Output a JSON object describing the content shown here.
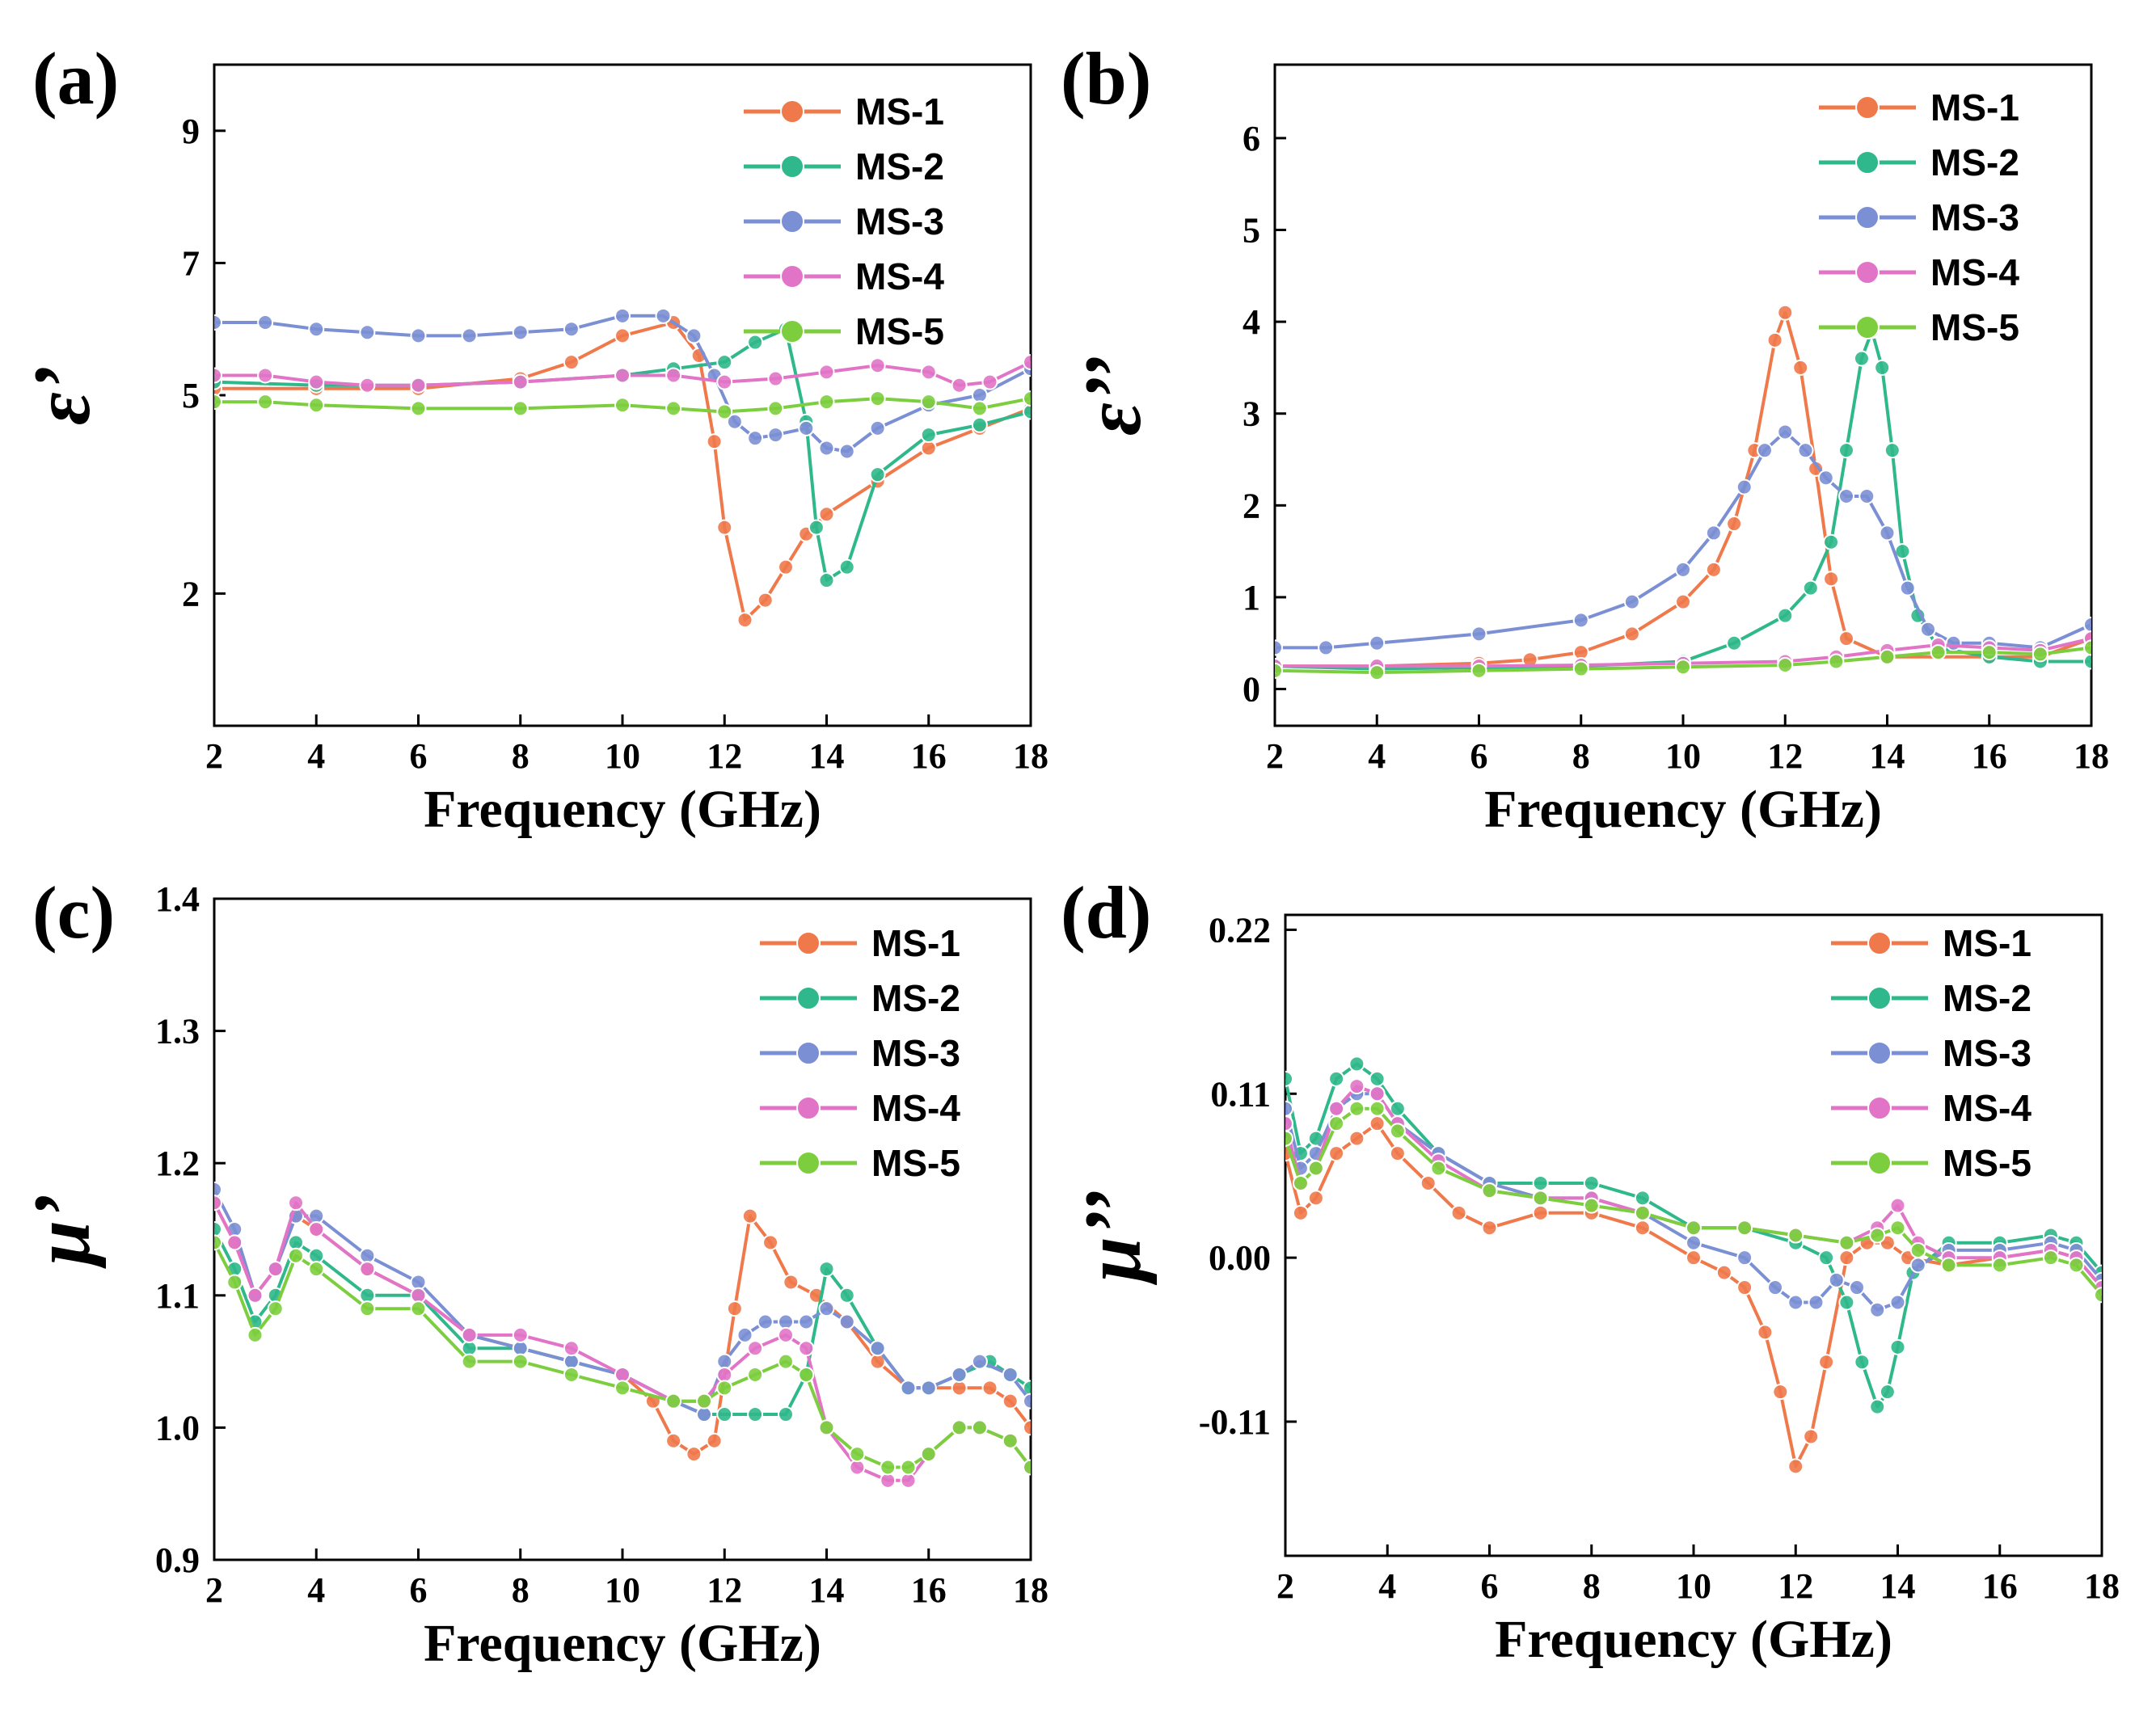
{
  "colors": {
    "MS-1": "#f0794b",
    "MS-2": "#2fb88b",
    "MS-3": "#7b8fd4",
    "MS-4": "#e274c8",
    "MS-5": "#7cce3e"
  },
  "chart_data": [
    {
      "panel": "(a)",
      "type": "line",
      "xlabel": "Frequency (GHz)",
      "ylabel": "ε’",
      "xlim": [
        2,
        18
      ],
      "ylim": [
        0,
        10
      ],
      "xticks": [
        2,
        4,
        6,
        8,
        10,
        12,
        14,
        16,
        18
      ],
      "yticks": [
        2,
        5,
        7,
        9
      ],
      "series": [
        {
          "name": "MS-1",
          "x": [
            2,
            4,
            6,
            8,
            9,
            10,
            11,
            11.5,
            11.8,
            12,
            12.4,
            12.8,
            13.2,
            13.6,
            14,
            15,
            16,
            17,
            18
          ],
          "y": [
            5.1,
            5.1,
            5.1,
            5.25,
            5.5,
            5.9,
            6.1,
            5.6,
            4.3,
            3.0,
            1.6,
            1.9,
            2.4,
            2.9,
            3.2,
            3.7,
            4.2,
            4.5,
            4.8
          ]
        },
        {
          "name": "MS-2",
          "x": [
            2,
            4,
            6,
            8,
            10,
            11,
            12,
            12.6,
            13.2,
            13.6,
            13.8,
            14,
            14.4,
            15,
            16,
            17,
            18
          ],
          "y": [
            5.2,
            5.15,
            5.15,
            5.2,
            5.3,
            5.4,
            5.5,
            5.8,
            6.0,
            4.6,
            3.0,
            2.2,
            2.4,
            3.8,
            4.4,
            4.55,
            4.75
          ]
        },
        {
          "name": "MS-3",
          "x": [
            2,
            3,
            4,
            5,
            6,
            7,
            8,
            9,
            10,
            10.8,
            11.4,
            11.8,
            12.2,
            12.6,
            13,
            13.6,
            14,
            14.4,
            15,
            16,
            17,
            18
          ],
          "y": [
            6.1,
            6.1,
            6.0,
            5.95,
            5.9,
            5.9,
            5.95,
            6.0,
            6.2,
            6.2,
            5.9,
            5.3,
            4.6,
            4.35,
            4.4,
            4.5,
            4.2,
            4.15,
            4.5,
            4.85,
            5.0,
            5.4
          ]
        },
        {
          "name": "MS-4",
          "x": [
            2,
            3,
            4,
            5,
            6,
            8,
            10,
            11,
            12,
            13,
            14,
            15,
            16,
            16.6,
            17.2,
            18
          ],
          "y": [
            5.3,
            5.3,
            5.2,
            5.15,
            5.15,
            5.2,
            5.3,
            5.3,
            5.2,
            5.25,
            5.35,
            5.45,
            5.35,
            5.15,
            5.2,
            5.5
          ]
        },
        {
          "name": "MS-5",
          "x": [
            2,
            3,
            4,
            6,
            8,
            10,
            11,
            12,
            13,
            14,
            15,
            16,
            17,
            18
          ],
          "y": [
            4.9,
            4.9,
            4.85,
            4.8,
            4.8,
            4.85,
            4.8,
            4.75,
            4.8,
            4.9,
            4.95,
            4.9,
            4.8,
            4.95
          ]
        }
      ]
    },
    {
      "panel": "(b)",
      "type": "line",
      "xlabel": "Frequency (GHz)",
      "ylabel": "ε’’",
      "xlim": [
        2,
        18
      ],
      "ylim": [
        -0.4,
        6.8
      ],
      "xticks": [
        2,
        4,
        6,
        8,
        10,
        12,
        14,
        16,
        18
      ],
      "yticks": [
        0,
        1,
        2,
        3,
        4,
        5,
        6
      ],
      "series": [
        {
          "name": "MS-1",
          "x": [
            2,
            4,
            6,
            7,
            8,
            9,
            10,
            10.6,
            11,
            11.4,
            11.8,
            12,
            12.3,
            12.6,
            12.9,
            13.2,
            14,
            16,
            17,
            18
          ],
          "y": [
            0.25,
            0.25,
            0.28,
            0.32,
            0.4,
            0.6,
            0.95,
            1.3,
            1.8,
            2.6,
            3.8,
            4.1,
            3.5,
            2.4,
            1.2,
            0.55,
            0.35,
            0.35,
            0.35,
            0.55
          ]
        },
        {
          "name": "MS-2",
          "x": [
            2,
            4,
            8,
            10,
            11,
            12,
            12.5,
            12.9,
            13.2,
            13.5,
            13.7,
            13.9,
            14.1,
            14.3,
            14.6,
            15,
            16,
            17,
            18
          ],
          "y": [
            0.25,
            0.22,
            0.25,
            0.3,
            0.5,
            0.8,
            1.1,
            1.6,
            2.6,
            3.6,
            3.9,
            3.5,
            2.6,
            1.5,
            0.8,
            0.45,
            0.35,
            0.3,
            0.3
          ]
        },
        {
          "name": "MS-3",
          "x": [
            2,
            3,
            4,
            6,
            8,
            9,
            10,
            10.6,
            11.2,
            11.6,
            12,
            12.4,
            12.8,
            13.2,
            13.6,
            14,
            14.4,
            14.8,
            15.3,
            16,
            17,
            18
          ],
          "y": [
            0.45,
            0.45,
            0.5,
            0.6,
            0.75,
            0.95,
            1.3,
            1.7,
            2.2,
            2.6,
            2.8,
            2.6,
            2.3,
            2.1,
            2.1,
            1.7,
            1.1,
            0.65,
            0.5,
            0.5,
            0.45,
            0.7
          ]
        },
        {
          "name": "MS-4",
          "x": [
            2,
            4,
            6,
            8,
            10,
            12,
            13,
            14,
            15,
            16,
            17,
            18
          ],
          "y": [
            0.25,
            0.25,
            0.25,
            0.26,
            0.28,
            0.3,
            0.35,
            0.42,
            0.48,
            0.45,
            0.42,
            0.55
          ]
        },
        {
          "name": "MS-5",
          "x": [
            2,
            4,
            6,
            8,
            10,
            12,
            13,
            14,
            15,
            16,
            17,
            18
          ],
          "y": [
            0.2,
            0.18,
            0.2,
            0.22,
            0.24,
            0.26,
            0.3,
            0.35,
            0.4,
            0.4,
            0.38,
            0.45
          ]
        }
      ]
    },
    {
      "panel": "(c)",
      "type": "line",
      "xlabel": "Frequency (GHz)",
      "ylabel": "μ’",
      "xlim": [
        2,
        18
      ],
      "ylim": [
        0.9,
        1.4
      ],
      "xticks": [
        2,
        4,
        6,
        8,
        10,
        12,
        14,
        16,
        18
      ],
      "yticks": [
        0.9,
        1.0,
        1.1,
        1.2,
        1.3,
        1.4
      ],
      "series": [
        {
          "name": "MS-1",
          "x": [
            2,
            2.4,
            2.8,
            3.2,
            3.6,
            4,
            5,
            6,
            7,
            8,
            9,
            10,
            10.6,
            11,
            11.4,
            11.8,
            12.2,
            12.5,
            12.9,
            13.3,
            13.8,
            14.4,
            15,
            15.6,
            16,
            16.6,
            17.2,
            17.6,
            18
          ],
          "y": [
            1.17,
            1.14,
            1.1,
            1.12,
            1.16,
            1.15,
            1.12,
            1.1,
            1.07,
            1.06,
            1.05,
            1.04,
            1.02,
            0.99,
            0.98,
            0.99,
            1.09,
            1.16,
            1.14,
            1.11,
            1.1,
            1.08,
            1.05,
            1.03,
            1.03,
            1.03,
            1.03,
            1.02,
            1.0
          ]
        },
        {
          "name": "MS-2",
          "x": [
            2,
            2.4,
            2.8,
            3.2,
            3.6,
            4,
            5,
            6,
            7,
            8,
            9,
            10,
            11,
            11.6,
            12,
            12.6,
            13.2,
            13.6,
            14,
            14.4,
            15,
            15.6,
            16,
            16.6,
            17.2,
            17.6,
            18
          ],
          "y": [
            1.15,
            1.12,
            1.08,
            1.1,
            1.14,
            1.13,
            1.1,
            1.1,
            1.06,
            1.06,
            1.05,
            1.04,
            1.02,
            1.01,
            1.01,
            1.01,
            1.01,
            1.04,
            1.12,
            1.1,
            1.06,
            1.03,
            1.03,
            1.04,
            1.05,
            1.04,
            1.03
          ]
        },
        {
          "name": "MS-3",
          "x": [
            2,
            2.4,
            2.8,
            3.2,
            3.6,
            4,
            5,
            6,
            7,
            8,
            9,
            10,
            11,
            11.6,
            12,
            12.4,
            12.8,
            13.2,
            13.6,
            14,
            14.4,
            15,
            15.6,
            16,
            16.6,
            17,
            17.6,
            18
          ],
          "y": [
            1.18,
            1.15,
            1.1,
            1.12,
            1.16,
            1.16,
            1.13,
            1.11,
            1.07,
            1.06,
            1.05,
            1.04,
            1.02,
            1.01,
            1.05,
            1.07,
            1.08,
            1.08,
            1.08,
            1.09,
            1.08,
            1.06,
            1.03,
            1.03,
            1.04,
            1.05,
            1.04,
            1.02
          ]
        },
        {
          "name": "MS-4",
          "x": [
            2,
            2.4,
            2.8,
            3.2,
            3.6,
            4,
            5,
            6,
            7,
            8,
            9,
            10,
            11,
            11.6,
            12,
            12.6,
            13.2,
            13.6,
            14,
            14.6,
            15.2,
            15.6,
            16,
            16.6,
            17,
            17.6,
            18
          ],
          "y": [
            1.17,
            1.14,
            1.1,
            1.12,
            1.17,
            1.15,
            1.12,
            1.1,
            1.07,
            1.07,
            1.06,
            1.04,
            1.02,
            1.02,
            1.04,
            1.06,
            1.07,
            1.06,
            1.0,
            0.97,
            0.96,
            0.96,
            0.98,
            1.0,
            1.0,
            0.99,
            0.97
          ]
        },
        {
          "name": "MS-5",
          "x": [
            2,
            2.4,
            2.8,
            3.2,
            3.6,
            4,
            5,
            6,
            7,
            8,
            9,
            10,
            11,
            11.6,
            12,
            12.6,
            13.2,
            13.6,
            14,
            14.6,
            15.2,
            15.6,
            16,
            16.6,
            17,
            17.6,
            18
          ],
          "y": [
            1.14,
            1.11,
            1.07,
            1.09,
            1.13,
            1.12,
            1.09,
            1.09,
            1.05,
            1.05,
            1.04,
            1.03,
            1.02,
            1.02,
            1.03,
            1.04,
            1.05,
            1.04,
            1.0,
            0.98,
            0.97,
            0.97,
            0.98,
            1.0,
            1.0,
            0.99,
            0.97
          ]
        }
      ]
    },
    {
      "panel": "(d)",
      "type": "line",
      "xlabel": "Frequency (GHz)",
      "ylabel": "μ’’",
      "xlim": [
        2,
        18
      ],
      "ylim": [
        -0.2,
        0.23
      ],
      "xticks": [
        2,
        4,
        6,
        8,
        10,
        12,
        14,
        16,
        18
      ],
      "yticks": [
        -0.11,
        0.0,
        0.11,
        0.22
      ],
      "series": [
        {
          "name": "MS-1",
          "x": [
            2,
            2.3,
            2.6,
            3,
            3.4,
            3.8,
            4.2,
            4.8,
            5.4,
            6,
            7,
            8,
            9,
            10,
            10.6,
            11,
            11.4,
            11.7,
            12,
            12.3,
            12.6,
            13,
            13.4,
            13.8,
            14.2,
            15,
            16,
            17,
            17.5,
            18
          ],
          "y": [
            0.07,
            0.03,
            0.04,
            0.07,
            0.08,
            0.09,
            0.07,
            0.05,
            0.03,
            0.02,
            0.03,
            0.03,
            0.02,
            0.0,
            -0.01,
            -0.02,
            -0.05,
            -0.09,
            -0.14,
            -0.12,
            -0.07,
            0.0,
            0.01,
            0.01,
            0.0,
            -0.005,
            0.0,
            0.005,
            0.0,
            -0.02
          ]
        },
        {
          "name": "MS-2",
          "x": [
            2,
            2.3,
            2.6,
            3,
            3.4,
            3.8,
            4.2,
            5,
            6,
            7,
            8,
            9,
            10,
            11,
            12,
            12.6,
            13,
            13.3,
            13.6,
            13.8,
            14,
            14.3,
            15,
            16,
            17,
            17.5,
            18
          ],
          "y": [
            0.12,
            0.07,
            0.08,
            0.12,
            0.13,
            0.12,
            0.1,
            0.07,
            0.05,
            0.05,
            0.05,
            0.04,
            0.02,
            0.02,
            0.01,
            0.0,
            -0.03,
            -0.07,
            -0.1,
            -0.09,
            -0.06,
            -0.01,
            0.01,
            0.01,
            0.015,
            0.01,
            -0.01
          ]
        },
        {
          "name": "MS-3",
          "x": [
            2,
            2.3,
            2.6,
            3,
            3.4,
            3.8,
            4.2,
            5,
            6,
            7,
            8,
            9,
            10,
            11,
            11.6,
            12,
            12.4,
            12.8,
            13.2,
            13.6,
            14,
            14.4,
            15,
            16,
            17,
            17.5,
            18
          ],
          "y": [
            0.1,
            0.06,
            0.07,
            0.1,
            0.11,
            0.11,
            0.09,
            0.07,
            0.05,
            0.04,
            0.04,
            0.03,
            0.01,
            0.0,
            -0.02,
            -0.03,
            -0.03,
            -0.015,
            -0.02,
            -0.035,
            -0.03,
            -0.005,
            0.005,
            0.005,
            0.01,
            0.005,
            -0.015
          ]
        },
        {
          "name": "MS-4",
          "x": [
            2,
            2.3,
            2.6,
            3,
            3.4,
            3.8,
            4.2,
            5,
            6,
            7,
            8,
            9,
            10,
            11,
            12,
            13,
            13.6,
            14,
            14.4,
            15,
            16,
            17,
            17.5,
            18
          ],
          "y": [
            0.09,
            0.05,
            0.06,
            0.1,
            0.115,
            0.11,
            0.09,
            0.065,
            0.045,
            0.04,
            0.04,
            0.03,
            0.02,
            0.02,
            0.015,
            0.01,
            0.02,
            0.035,
            0.01,
            0.0,
            0.0,
            0.005,
            0.0,
            -0.02
          ]
        },
        {
          "name": "MS-5",
          "x": [
            2,
            2.3,
            2.6,
            3,
            3.4,
            3.8,
            4.2,
            5,
            6,
            7,
            8,
            9,
            10,
            11,
            12,
            13,
            13.6,
            14,
            14.4,
            15,
            16,
            17,
            17.5,
            18
          ],
          "y": [
            0.08,
            0.05,
            0.06,
            0.09,
            0.1,
            0.1,
            0.085,
            0.06,
            0.045,
            0.04,
            0.035,
            0.03,
            0.02,
            0.02,
            0.015,
            0.01,
            0.015,
            0.02,
            0.005,
            -0.005,
            -0.005,
            0.0,
            -0.005,
            -0.025
          ]
        }
      ]
    }
  ]
}
